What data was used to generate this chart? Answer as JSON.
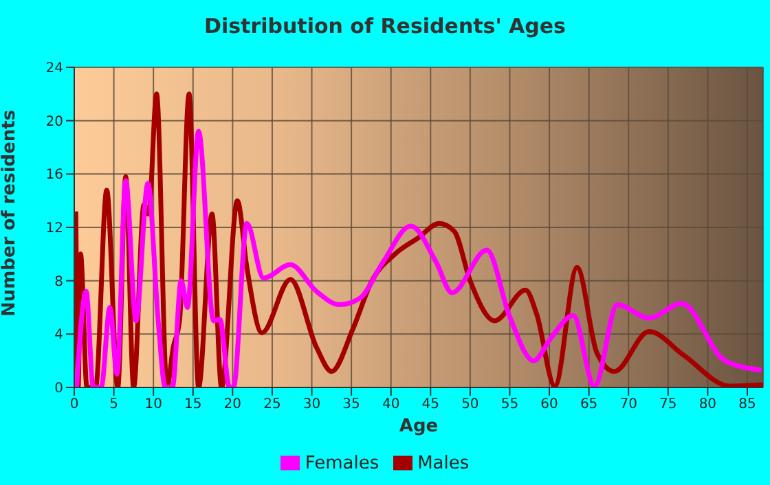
{
  "chart_data": {
    "type": "line",
    "title": "Distribution of Residents' Ages",
    "xlabel": "Age",
    "ylabel": "Number of residents",
    "xlim": [
      0,
      87
    ],
    "xticks": [
      0,
      5,
      10,
      15,
      20,
      25,
      30,
      35,
      40,
      45,
      50,
      55,
      60,
      65,
      70,
      75,
      80,
      85
    ],
    "ylim": [
      0,
      24
    ],
    "yticks": [
      0,
      4,
      8,
      12,
      16,
      20,
      24
    ],
    "grid": true,
    "legend": "bottom",
    "marker": "none",
    "line_style": "solid",
    "series": [
      {
        "name": "Males",
        "color": "#a50000",
        "x": [
          0.2,
          0.5,
          0.8,
          1.6,
          2.7,
          4.1,
          5.5,
          6.5,
          7.5,
          8.8,
          9.4,
          10.4,
          11.7,
          12.5,
          13.3,
          14.5,
          15.7,
          17.4,
          18.6,
          20.6,
          21.8,
          23.7,
          27.3,
          30.6,
          32.5,
          35.2,
          37.6,
          40.5,
          43.4,
          46.1,
          48,
          50,
          53.1,
          57,
          58.4,
          60.7,
          63.5,
          66,
          68.2,
          72.6,
          77,
          82.8,
          87
        ],
        "values": [
          13.2,
          0,
          10,
          0,
          0,
          14.8,
          0,
          15.8,
          0,
          13.7,
          13,
          22,
          0,
          3,
          5,
          22,
          0,
          13,
          0,
          14,
          9,
          4.1,
          8.1,
          3,
          1.2,
          4.4,
          8,
          10,
          11.2,
          12.3,
          11.7,
          8,
          5,
          7.3,
          5.5,
          0.1,
          9,
          2.6,
          1.2,
          4.2,
          2.4,
          0.1,
          0.2
        ]
      },
      {
        "name": "Females",
        "color": "#ff00ff",
        "x": [
          0.3,
          1.5,
          2.4,
          3.4,
          4.5,
          5.4,
          6.5,
          7.8,
          9.3,
          10.6,
          11.5,
          12.4,
          13.5,
          14.3,
          15.7,
          17.6,
          18.4,
          19.6,
          20.1,
          21.8,
          23.9,
          27.3,
          30.6,
          33.5,
          36.1,
          39,
          42.5,
          45.7,
          47.7,
          52.1,
          55,
          58,
          60.2,
          63,
          65.7,
          68.6,
          72.6,
          76.7,
          82.2,
          86.8
        ],
        "values": [
          0,
          7.2,
          0,
          0,
          6,
          1,
          15.5,
          5,
          15.3,
          5,
          0,
          0,
          8,
          6,
          19.2,
          5,
          5.1,
          0,
          0,
          12.3,
          8.2,
          9.2,
          7.2,
          6.2,
          6.7,
          9.4,
          12.1,
          9.4,
          7.1,
          10.3,
          5.3,
          2,
          3.7,
          5.4,
          0.1,
          6.2,
          5.2,
          6.3,
          2,
          1.3
        ]
      }
    ]
  }
}
